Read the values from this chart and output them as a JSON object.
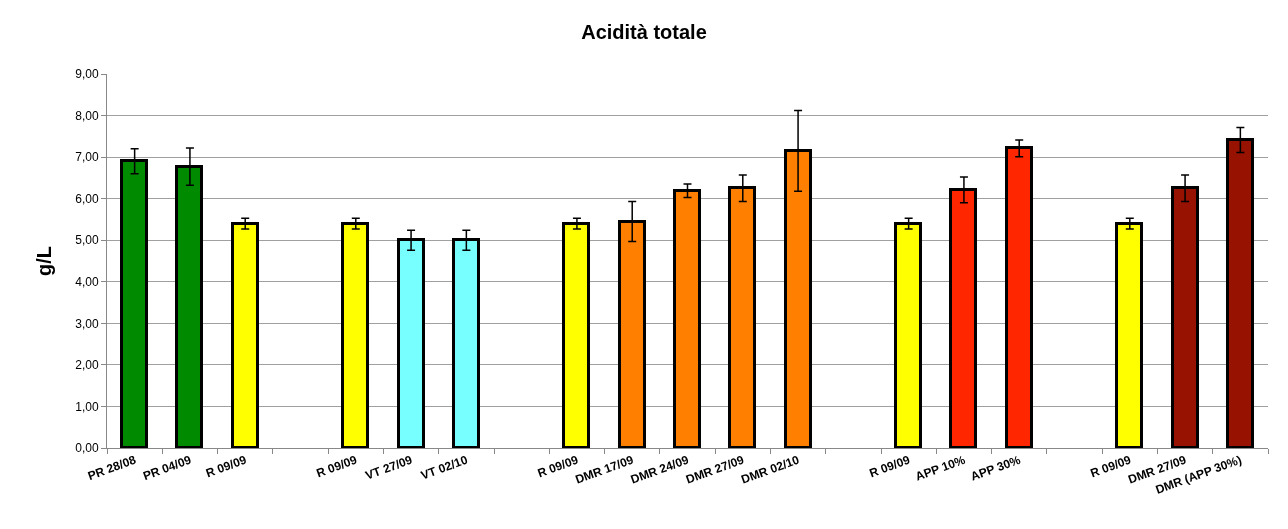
{
  "chart_data": {
    "type": "bar",
    "title": "Acidità totale",
    "ylabel": "g/L",
    "categories": [
      "PR 28/08",
      "PR 04/09",
      "R 09/09",
      null,
      "R 09/09",
      "VT 27/09",
      "VT 02/10",
      null,
      "R 09/09",
      "DMR 17/09",
      "DMR 24/09",
      "DMR 27/09",
      "DMR 02/10",
      null,
      "R 09/09",
      "APP 10%",
      "APP 30%",
      null,
      "R 09/09",
      "DMR 27/09",
      "DMR (APP 30%)"
    ],
    "values": [
      6.9,
      6.77,
      5.4,
      null,
      5.4,
      5.0,
      5.0,
      null,
      5.4,
      5.45,
      6.19,
      6.25,
      7.15,
      null,
      5.4,
      6.21,
      7.21,
      null,
      5.4,
      6.25,
      7.41
    ],
    "errors": [
      0.3,
      0.45,
      0.13,
      null,
      0.13,
      0.24,
      0.24,
      null,
      0.13,
      0.48,
      0.16,
      0.32,
      0.97,
      null,
      0.13,
      0.31,
      0.2,
      null,
      0.13,
      0.32,
      0.3
    ],
    "colors": [
      "#008a00",
      "#008a00",
      "#ffff00",
      null,
      "#ffff00",
      "#77ffff",
      "#77ffff",
      null,
      "#ffff00",
      "#ff7f00",
      "#ff7f00",
      "#ff7f00",
      "#ff7f00",
      null,
      "#ffff00",
      "#ff2600",
      "#ff2600",
      null,
      "#ffff00",
      "#971200",
      "#971200"
    ],
    "ylim": [
      0,
      9
    ],
    "yticks": [
      {
        "value": 0,
        "label": "0,00"
      },
      {
        "value": 1,
        "label": "1,00"
      },
      {
        "value": 2,
        "label": "2,00"
      },
      {
        "value": 3,
        "label": "3,00"
      },
      {
        "value": 4,
        "label": "4,00"
      },
      {
        "value": 5,
        "label": "5,00"
      },
      {
        "value": 6,
        "label": "6,00"
      },
      {
        "value": 7,
        "label": "7,00"
      },
      {
        "value": 8,
        "label": "8,00"
      },
      {
        "value": 9,
        "label": "9,00"
      }
    ],
    "grid": "y"
  }
}
